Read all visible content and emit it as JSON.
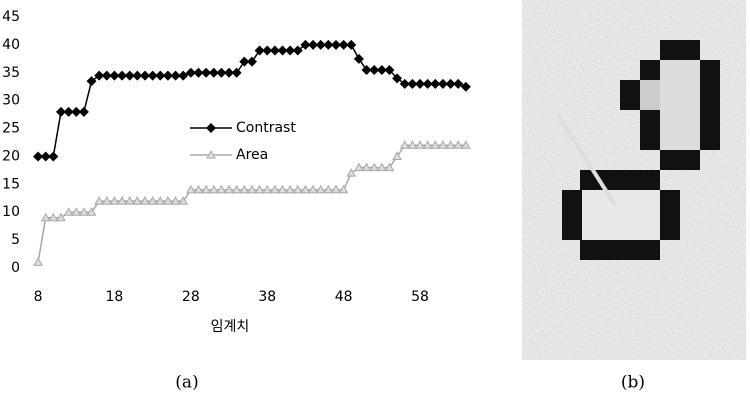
{
  "chart_data": {
    "type": "line",
    "x": [
      8,
      9,
      10,
      11,
      12,
      13,
      14,
      15,
      16,
      17,
      18,
      19,
      20,
      21,
      22,
      23,
      24,
      25,
      26,
      27,
      28,
      29,
      30,
      31,
      32,
      33,
      34,
      35,
      36,
      37,
      38,
      39,
      40,
      41,
      42,
      43,
      44,
      45,
      46,
      47,
      48,
      49,
      50,
      51,
      52,
      53,
      54,
      55,
      56,
      57,
      58,
      59,
      60,
      61,
      62,
      63,
      64
    ],
    "xlim": [
      7,
      65
    ],
    "xticks": [
      8,
      18,
      28,
      38,
      48,
      58
    ],
    "ylim": [
      0,
      45
    ],
    "yticks": [
      0,
      5,
      10,
      15,
      20,
      25,
      30,
      35,
      40,
      45
    ],
    "xlabel": "임계치",
    "series": [
      {
        "name": "Contrast",
        "color": "#000000",
        "marker": "diamond",
        "values": [
          20,
          20,
          20,
          28,
          28,
          28,
          28,
          33.5,
          34.5,
          34.5,
          34.5,
          34.5,
          34.5,
          34.5,
          34.5,
          34.5,
          34.5,
          34.5,
          34.5,
          34.5,
          35,
          35,
          35,
          35,
          35,
          35,
          35,
          37,
          37,
          39,
          39,
          39,
          39,
          39,
          39,
          40,
          40,
          40,
          40,
          40,
          40,
          40,
          37.5,
          35.5,
          35.5,
          35.5,
          35.5,
          34,
          33,
          33,
          33,
          33,
          33,
          33,
          33,
          33,
          32.5
        ]
      },
      {
        "name": "Area",
        "color": "#a8a8a8",
        "marker": "triangle",
        "values": [
          1,
          9,
          9,
          9,
          10,
          10,
          10,
          10,
          12,
          12,
          12,
          12,
          12,
          12,
          12,
          12,
          12,
          12,
          12,
          12,
          14,
          14,
          14,
          14,
          14,
          14,
          14,
          14,
          14,
          14,
          14,
          14,
          14,
          14,
          14,
          14,
          14,
          14,
          14,
          14,
          14,
          17,
          18,
          18,
          18,
          18,
          18,
          20,
          22,
          22,
          22,
          22,
          22,
          22,
          22,
          22,
          22
        ]
      }
    ]
  },
  "captions": [
    "(a)",
    "(b)"
  ]
}
